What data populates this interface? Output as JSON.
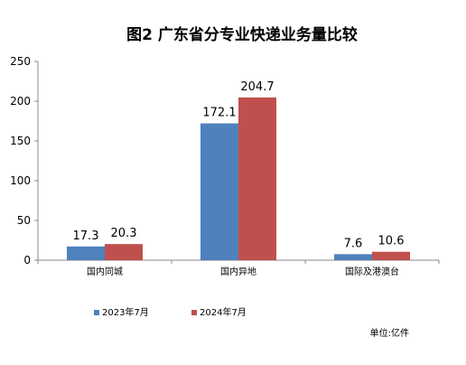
{
  "chart_data": {
    "type": "bar",
    "title": "图2 广东省分专业快递业务量比较",
    "categories": [
      "国内同城",
      "国内异地",
      "国际及港澳台"
    ],
    "series": [
      {
        "name": "2023年7月",
        "values": [
          17.3,
          172.1,
          7.6
        ],
        "color": "#4f81bd"
      },
      {
        "name": "2024年7月",
        "values": [
          20.3,
          204.7,
          10.6
        ],
        "color": "#c0504d"
      }
    ],
    "ylim": [
      0,
      250
    ],
    "yticks": [
      0,
      50,
      100,
      150,
      200,
      250
    ],
    "unit": "单位:亿件",
    "legend_position": "bottom-left",
    "grid": false
  }
}
